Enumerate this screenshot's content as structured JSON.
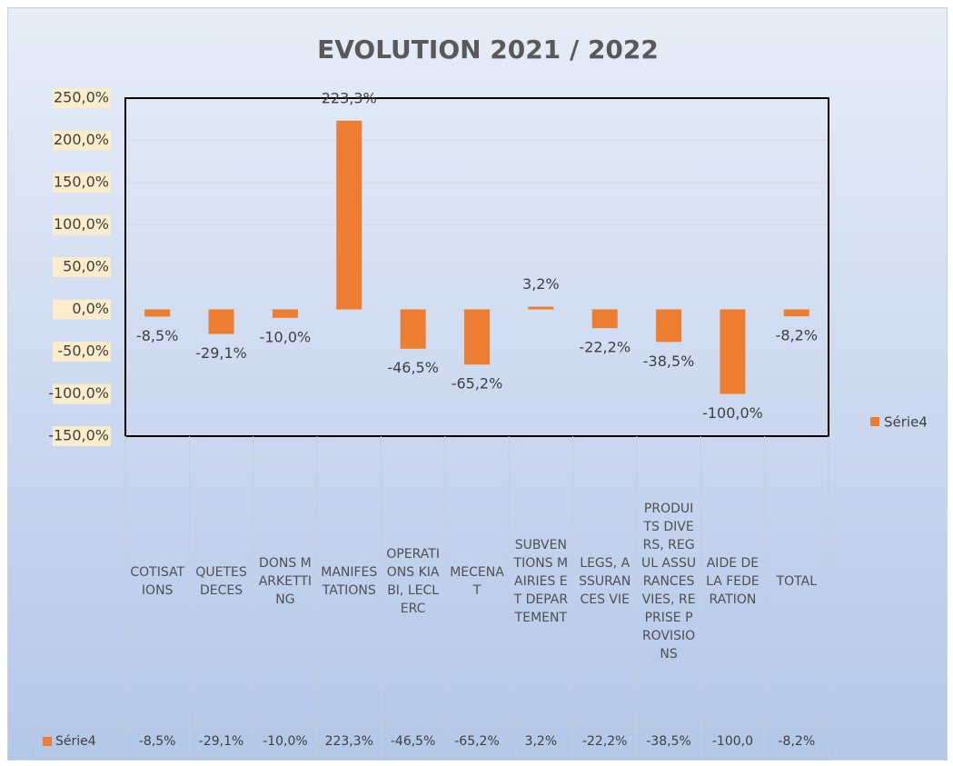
{
  "chart_data": {
    "type": "bar",
    "title": "EVOLUTION 2021 / 2022",
    "categories": [
      "COTISATIONS",
      "QUETES DECES",
      "DONS MARKETTING",
      "MANIFESTATIONS",
      "OPERATIONS KIABI, LECLERC",
      "MECENAT",
      "SUBVENTIONS MAIRIES ET DEPARTEMENT",
      "LEGS, ASSURANCES VIE",
      "PRODUITS DIVERS, REGUL ASSURANCES VIES, REPRISE PROVISIONS",
      "AIDE DE LA FEDERATION",
      "TOTAL"
    ],
    "series": [
      {
        "name": "Série4",
        "color": "#ed7d31",
        "values": [
          -8.5,
          -29.1,
          -10.0,
          223.3,
          -46.5,
          -65.2,
          3.2,
          -22.2,
          -38.5,
          -100.0,
          -8.2
        ],
        "value_labels": [
          "-8,5%",
          "-29,1%",
          "-10,0%",
          "223,3%",
          "-46,5%",
          "-65,2%",
          "3,2%",
          "-22,2%",
          "-38,5%",
          "-100,0%",
          "-8,2%"
        ]
      }
    ],
    "table_labels": [
      "-8,5%",
      "-29,1%",
      "-10,0%",
      "223,3%",
      "-46,5%",
      "-65,2%",
      "3,2%",
      "-22,2%",
      "-38,5%",
      "-100,0",
      "-8,2%"
    ],
    "ylim": [
      -150,
      250
    ],
    "yticks": [
      {
        "value": -150,
        "label": "-150,0%"
      },
      {
        "value": -100,
        "label": "-100,0%"
      },
      {
        "value": -50,
        "label": "-50,0%"
      },
      {
        "value": 0,
        "label": "0,0%"
      },
      {
        "value": 50,
        "label": "50,0%"
      },
      {
        "value": 100,
        "label": "100,0%"
      },
      {
        "value": 150,
        "label": "150,0%"
      },
      {
        "value": 200,
        "label": "200,0%"
      },
      {
        "value": 250,
        "label": "250,0%"
      }
    ],
    "grid": true,
    "legend": "right"
  }
}
